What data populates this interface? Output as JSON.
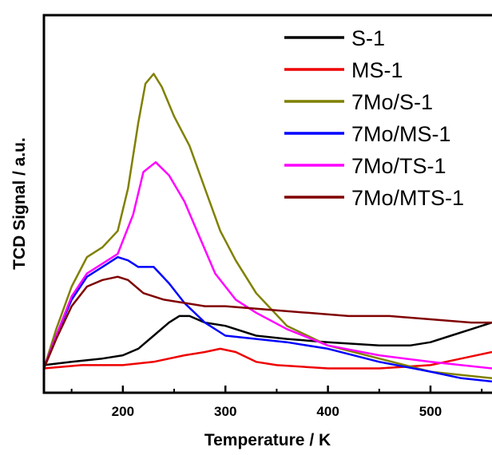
{
  "chart_data": {
    "type": "line",
    "xlabel": "Temperature / K",
    "ylabel": "TCD Signal / a.u.",
    "xlim": [
      123,
      560
    ],
    "ylim": [
      0,
      100
    ],
    "xticks": [
      200,
      300,
      400,
      500
    ],
    "grid": false,
    "legend": {
      "position": "top-right"
    },
    "series": [
      {
        "name": "S-1",
        "color": "#000000",
        "points": [
          [
            123,
            6
          ],
          [
            150,
            7
          ],
          [
            180,
            8
          ],
          [
            200,
            9
          ],
          [
            215,
            11
          ],
          [
            230,
            15
          ],
          [
            245,
            19
          ],
          [
            255,
            21
          ],
          [
            265,
            21
          ],
          [
            280,
            19
          ],
          [
            300,
            18
          ],
          [
            330,
            15
          ],
          [
            360,
            14
          ],
          [
            400,
            13
          ],
          [
            450,
            12
          ],
          [
            480,
            12
          ],
          [
            500,
            13
          ],
          [
            520,
            15
          ],
          [
            540,
            17
          ],
          [
            560,
            19
          ]
        ]
      },
      {
        "name": "MS-1",
        "color": "#ee0000",
        "points": [
          [
            123,
            5
          ],
          [
            160,
            6
          ],
          [
            200,
            6
          ],
          [
            230,
            7
          ],
          [
            260,
            9
          ],
          [
            280,
            10
          ],
          [
            295,
            11
          ],
          [
            310,
            10
          ],
          [
            330,
            7
          ],
          [
            350,
            6
          ],
          [
            400,
            5
          ],
          [
            450,
            5
          ],
          [
            500,
            6
          ],
          [
            530,
            8
          ],
          [
            560,
            10
          ]
        ]
      },
      {
        "name": "7Mo/S-1",
        "color": "#808000",
        "points": [
          [
            123,
            5
          ],
          [
            135,
            17
          ],
          [
            150,
            30
          ],
          [
            165,
            39
          ],
          [
            180,
            42
          ],
          [
            195,
            47
          ],
          [
            205,
            60
          ],
          [
            215,
            80
          ],
          [
            222,
            92
          ],
          [
            230,
            95
          ],
          [
            238,
            91
          ],
          [
            250,
            82
          ],
          [
            265,
            73
          ],
          [
            280,
            60
          ],
          [
            295,
            47
          ],
          [
            310,
            38
          ],
          [
            330,
            28
          ],
          [
            360,
            18
          ],
          [
            400,
            12
          ],
          [
            450,
            8
          ],
          [
            500,
            4
          ],
          [
            530,
            3
          ],
          [
            560,
            2
          ]
        ]
      },
      {
        "name": "7Mo/MS-1",
        "color": "#0000ff",
        "points": [
          [
            123,
            5
          ],
          [
            135,
            15
          ],
          [
            150,
            26
          ],
          [
            165,
            33
          ],
          [
            180,
            36
          ],
          [
            195,
            39
          ],
          [
            205,
            38
          ],
          [
            215,
            36
          ],
          [
            230,
            36
          ],
          [
            245,
            31
          ],
          [
            260,
            25
          ],
          [
            280,
            19
          ],
          [
            300,
            15
          ],
          [
            330,
            14
          ],
          [
            360,
            13
          ],
          [
            400,
            11
          ],
          [
            450,
            7
          ],
          [
            500,
            4
          ],
          [
            530,
            2
          ],
          [
            560,
            1
          ]
        ]
      },
      {
        "name": "7Mo/TS-1",
        "color": "#ff00ff",
        "points": [
          [
            123,
            5
          ],
          [
            135,
            15
          ],
          [
            150,
            27
          ],
          [
            165,
            34
          ],
          [
            180,
            37
          ],
          [
            195,
            40
          ],
          [
            210,
            52
          ],
          [
            220,
            65
          ],
          [
            232,
            68
          ],
          [
            245,
            64
          ],
          [
            260,
            56
          ],
          [
            275,
            45
          ],
          [
            290,
            34
          ],
          [
            310,
            26
          ],
          [
            330,
            22
          ],
          [
            360,
            17
          ],
          [
            400,
            12
          ],
          [
            450,
            9
          ],
          [
            500,
            7
          ],
          [
            530,
            6
          ],
          [
            560,
            5
          ]
        ]
      },
      {
        "name": "7Mo/MTS-1",
        "color": "#800000",
        "points": [
          [
            123,
            5
          ],
          [
            135,
            14
          ],
          [
            150,
            24
          ],
          [
            165,
            30
          ],
          [
            180,
            32
          ],
          [
            195,
            33
          ],
          [
            205,
            32
          ],
          [
            220,
            28
          ],
          [
            240,
            26
          ],
          [
            260,
            25
          ],
          [
            280,
            24
          ],
          [
            300,
            24
          ],
          [
            340,
            23
          ],
          [
            380,
            22
          ],
          [
            420,
            21
          ],
          [
            460,
            21
          ],
          [
            500,
            20
          ],
          [
            540,
            19
          ],
          [
            560,
            19
          ]
        ]
      }
    ]
  }
}
